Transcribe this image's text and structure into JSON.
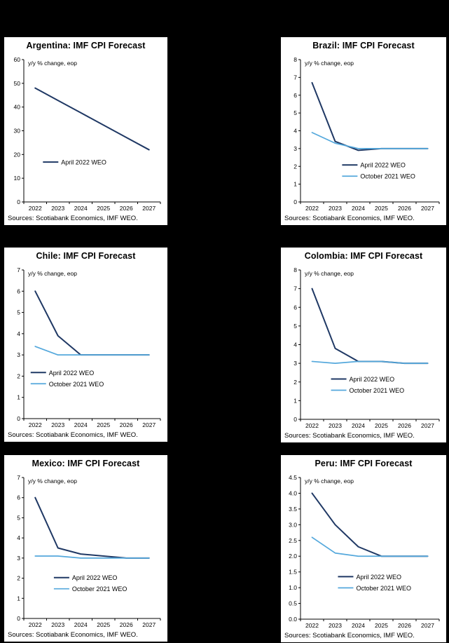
{
  "page_background": "#000000",
  "panel_background": "#FFFFFF",
  "axis_color": "#000000",
  "chart_data": [
    {
      "type": "line",
      "country": "Argentina",
      "title": "Argentina: IMF CPI Forecast",
      "unit_label": "y/y % change, eop",
      "source": "Sources: Scotiabank Economics, IMF WEO.",
      "x": [
        2022,
        2023,
        2024,
        2025,
        2026,
        2027
      ],
      "ylim": [
        0,
        60
      ],
      "yticks": [
        0,
        10,
        20,
        30,
        40,
        50,
        60
      ],
      "ytick_decimals": 0,
      "grid": false,
      "legend": {
        "x": 0.14,
        "y": 0.72,
        "position": "center-left"
      },
      "series": [
        {
          "name": "April 2022 WEO",
          "color": "#1F3864",
          "width": 2,
          "values": [
            48,
            42.8,
            37.6,
            32.4,
            27.2,
            22
          ]
        }
      ]
    },
    {
      "type": "line",
      "country": "Brazil",
      "title": "Brazil: IMF CPI Forecast",
      "unit_label": "y/y % change, eop",
      "source": "Sources: Scotiabank Economics, IMF WEO.",
      "x": [
        2022,
        2023,
        2024,
        2025,
        2026,
        2027
      ],
      "ylim": [
        0,
        8
      ],
      "yticks": [
        0,
        1,
        2,
        3,
        4,
        5,
        6,
        7,
        8
      ],
      "ytick_decimals": 0,
      "grid": false,
      "legend": {
        "x": 0.3,
        "y": 0.74,
        "position": "bottom-right"
      },
      "series": [
        {
          "name": "April 2022 WEO",
          "color": "#1F3864",
          "width": 2,
          "values": [
            6.7,
            3.4,
            2.9,
            3.0,
            3.0,
            3.0
          ]
        },
        {
          "name": "October 2021 WEO",
          "color": "#54A8DC",
          "width": 1.7,
          "values": [
            3.9,
            3.3,
            3.0,
            3.0,
            3.0,
            3.0
          ]
        }
      ]
    },
    {
      "type": "line",
      "country": "Chile",
      "title": "Chile: IMF CPI Forecast",
      "unit_label": "y/y % change, eop",
      "source": "Sources: Scotiabank Economics, IMF WEO.",
      "x": [
        2022,
        2023,
        2024,
        2025,
        2026,
        2027
      ],
      "ylim": [
        0,
        7
      ],
      "yticks": [
        0,
        1,
        2,
        3,
        4,
        5,
        6,
        7
      ],
      "ytick_decimals": 0,
      "grid": false,
      "legend": {
        "x": 0.05,
        "y": 0.69,
        "position": "bottom-left"
      },
      "series": [
        {
          "name": "April 2022 WEO",
          "color": "#1F3864",
          "width": 2,
          "values": [
            6.0,
            3.9,
            3.0,
            3.0,
            3.0,
            3.0
          ]
        },
        {
          "name": "October 2021 WEO",
          "color": "#54A8DC",
          "width": 1.7,
          "values": [
            3.4,
            3.0,
            3.0,
            3.0,
            3.0,
            3.0
          ]
        }
      ]
    },
    {
      "type": "line",
      "country": "Colombia",
      "title": "Colombia: IMF CPI Forecast",
      "unit_label": "y/y % change, eop",
      "source": "Sources: Scotiabank Economics, IMF WEO.",
      "x": [
        2022,
        2023,
        2024,
        2025,
        2026,
        2027
      ],
      "ylim": [
        0,
        8
      ],
      "yticks": [
        0,
        1,
        2,
        3,
        4,
        5,
        6,
        7,
        8
      ],
      "ytick_decimals": 0,
      "grid": false,
      "legend": {
        "x": 0.22,
        "y": 0.73,
        "position": "bottom-center"
      },
      "series": [
        {
          "name": "April 2022 WEO",
          "color": "#1F3864",
          "width": 2,
          "values": [
            7.0,
            3.8,
            3.1,
            3.1,
            3.0,
            3.0
          ]
        },
        {
          "name": "October 2021 WEO",
          "color": "#54A8DC",
          "width": 1.7,
          "values": [
            3.1,
            3.0,
            3.1,
            3.1,
            3.0,
            3.0
          ]
        }
      ]
    },
    {
      "type": "line",
      "country": "Mexico",
      "title": "Mexico: IMF CPI Forecast",
      "unit_label": "y/y % change, eop",
      "source": "Sources: Scotiabank Economics, IMF WEO.",
      "x": [
        2022,
        2023,
        2024,
        2025,
        2026,
        2027
      ],
      "ylim": [
        0,
        7
      ],
      "yticks": [
        0,
        1,
        2,
        3,
        4,
        5,
        6,
        7
      ],
      "ytick_decimals": 0,
      "grid": false,
      "legend": {
        "x": 0.22,
        "y": 0.71,
        "position": "bottom-center"
      },
      "series": [
        {
          "name": "April 2022 WEO",
          "color": "#1F3864",
          "width": 2,
          "values": [
            6.0,
            3.5,
            3.2,
            3.1,
            3.0,
            3.0
          ]
        },
        {
          "name": "October 2021 WEO",
          "color": "#54A8DC",
          "width": 1.7,
          "values": [
            3.1,
            3.1,
            3.0,
            3.0,
            3.0,
            3.0
          ]
        }
      ]
    },
    {
      "type": "line",
      "country": "Peru",
      "title": "Peru: IMF CPI Forecast",
      "unit_label": "y/y % change, eop",
      "source": "Sources: Scotiabank Economics, IMF WEO.",
      "x": [
        2022,
        2023,
        2024,
        2025,
        2026,
        2027
      ],
      "ylim": [
        0,
        4.5
      ],
      "yticks": [
        0,
        0.5,
        1.0,
        1.5,
        2.0,
        2.5,
        3.0,
        3.5,
        4.0,
        4.5
      ],
      "ytick_decimals": 1,
      "grid": false,
      "legend": {
        "x": 0.27,
        "y": 0.7,
        "position": "bottom-center"
      },
      "series": [
        {
          "name": "April 2022 WEO",
          "color": "#1F3864",
          "width": 2,
          "values": [
            4.0,
            3.0,
            2.3,
            2.0,
            2.0,
            2.0
          ]
        },
        {
          "name": "October 2021 WEO",
          "color": "#54A8DC",
          "width": 1.7,
          "values": [
            2.6,
            2.1,
            2.0,
            2.0,
            2.0,
            2.0
          ]
        }
      ]
    }
  ]
}
